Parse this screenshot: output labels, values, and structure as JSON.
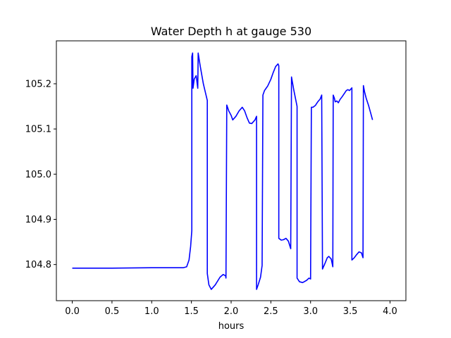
{
  "chart_data": {
    "type": "line",
    "title": "Water Depth h at gauge 530",
    "xlabel": "hours",
    "ylabel": "",
    "xlim": [
      -0.2,
      4.2
    ],
    "ylim": [
      104.72,
      105.295
    ],
    "xticks": [
      0.0,
      0.5,
      1.0,
      1.5,
      2.0,
      2.5,
      3.0,
      3.5,
      4.0
    ],
    "xtick_labels": [
      "0.0",
      "0.5",
      "1.0",
      "1.5",
      "2.0",
      "2.5",
      "3.0",
      "3.5",
      "4.0"
    ],
    "yticks": [
      104.8,
      104.9,
      105.0,
      105.1,
      105.2
    ],
    "ytick_labels": [
      "104.8",
      "104.9",
      "105.0",
      "105.1",
      "105.2"
    ],
    "grid": false,
    "legend": "none",
    "series": [
      {
        "color": "#0000ff",
        "points": [
          [
            0.0,
            104.792
          ],
          [
            0.5,
            104.792
          ],
          [
            1.0,
            104.793
          ],
          [
            1.4,
            104.793
          ],
          [
            1.44,
            104.795
          ],
          [
            1.47,
            104.81
          ],
          [
            1.49,
            104.84
          ],
          [
            1.505,
            104.875
          ],
          [
            1.505,
            105.26
          ],
          [
            1.515,
            105.268
          ],
          [
            1.52,
            105.19
          ],
          [
            1.535,
            105.21
          ],
          [
            1.56,
            105.218
          ],
          [
            1.58,
            105.19
          ],
          [
            1.585,
            105.268
          ],
          [
            1.61,
            105.24
          ],
          [
            1.65,
            105.2
          ],
          [
            1.7,
            105.163
          ],
          [
            1.7,
            104.78
          ],
          [
            1.72,
            104.755
          ],
          [
            1.75,
            104.745
          ],
          [
            1.8,
            104.755
          ],
          [
            1.86,
            104.772
          ],
          [
            1.9,
            104.778
          ],
          [
            1.93,
            104.775
          ],
          [
            1.935,
            104.77
          ],
          [
            1.945,
            105.153
          ],
          [
            1.97,
            105.14
          ],
          [
            2.0,
            105.13
          ],
          [
            2.02,
            105.12
          ],
          [
            2.06,
            105.128
          ],
          [
            2.1,
            105.14
          ],
          [
            2.14,
            105.148
          ],
          [
            2.17,
            105.14
          ],
          [
            2.2,
            105.125
          ],
          [
            2.23,
            105.113
          ],
          [
            2.26,
            105.112
          ],
          [
            2.3,
            105.12
          ],
          [
            2.32,
            105.128
          ],
          [
            2.32,
            104.745
          ],
          [
            2.34,
            104.755
          ],
          [
            2.37,
            104.772
          ],
          [
            2.39,
            104.798
          ],
          [
            2.4,
            105.175
          ],
          [
            2.42,
            105.185
          ],
          [
            2.44,
            105.19
          ],
          [
            2.46,
            105.195
          ],
          [
            2.5,
            105.21
          ],
          [
            2.53,
            105.225
          ],
          [
            2.56,
            105.238
          ],
          [
            2.59,
            105.244
          ],
          [
            2.6,
            105.24
          ],
          [
            2.6,
            104.858
          ],
          [
            2.63,
            104.854
          ],
          [
            2.66,
            104.855
          ],
          [
            2.69,
            104.858
          ],
          [
            2.72,
            104.852
          ],
          [
            2.75,
            104.835
          ],
          [
            2.76,
            105.215
          ],
          [
            2.79,
            105.185
          ],
          [
            2.83,
            105.15
          ],
          [
            2.83,
            104.77
          ],
          [
            2.86,
            104.762
          ],
          [
            2.9,
            104.76
          ],
          [
            2.95,
            104.765
          ],
          [
            2.98,
            104.77
          ],
          [
            3.0,
            104.768
          ],
          [
            3.01,
            105.148
          ],
          [
            3.03,
            105.148
          ],
          [
            3.06,
            105.152
          ],
          [
            3.09,
            105.16
          ],
          [
            3.12,
            105.166
          ],
          [
            3.14,
            105.175
          ],
          [
            3.15,
            104.79
          ],
          [
            3.18,
            104.802
          ],
          [
            3.21,
            104.815
          ],
          [
            3.23,
            104.818
          ],
          [
            3.26,
            104.812
          ],
          [
            3.28,
            104.795
          ],
          [
            3.285,
            105.175
          ],
          [
            3.3,
            105.168
          ],
          [
            3.31,
            105.16
          ],
          [
            3.33,
            105.162
          ],
          [
            3.35,
            105.158
          ],
          [
            3.37,
            105.165
          ],
          [
            3.4,
            105.172
          ],
          [
            3.45,
            105.185
          ],
          [
            3.47,
            105.187
          ],
          [
            3.49,
            105.185
          ],
          [
            3.51,
            105.189
          ],
          [
            3.52,
            105.191
          ],
          [
            3.52,
            104.81
          ],
          [
            3.55,
            104.815
          ],
          [
            3.58,
            104.822
          ],
          [
            3.61,
            104.828
          ],
          [
            3.64,
            104.826
          ],
          [
            3.66,
            104.815
          ],
          [
            3.665,
            105.196
          ],
          [
            3.68,
            105.182
          ],
          [
            3.7,
            105.168
          ],
          [
            3.73,
            105.152
          ],
          [
            3.76,
            105.133
          ],
          [
            3.78,
            105.12
          ]
        ]
      }
    ]
  }
}
